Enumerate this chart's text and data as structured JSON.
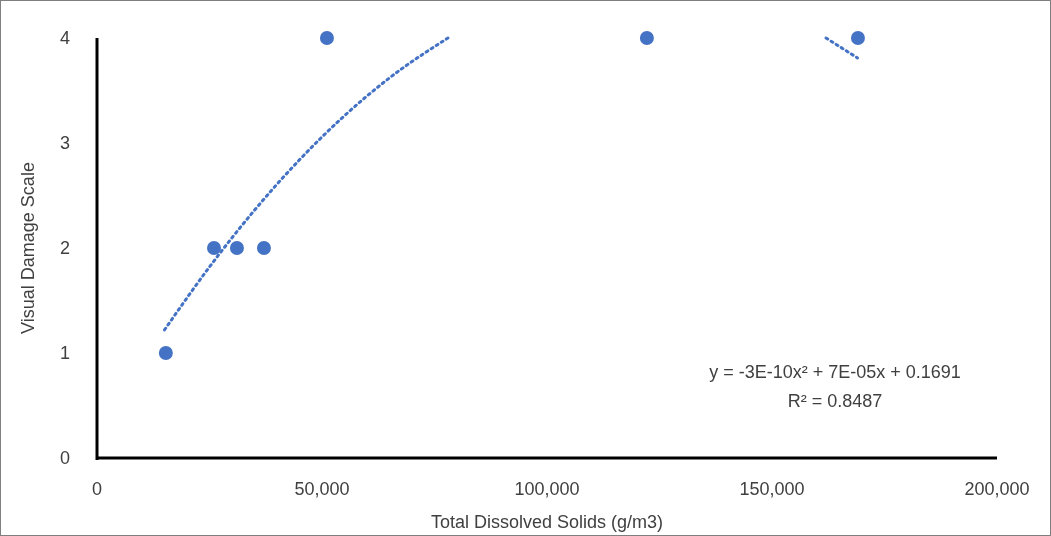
{
  "chart_data": {
    "type": "scatter",
    "xlabel": "Total Dissolved Solids (g/m3)",
    "ylabel": "Visual Damage Scale",
    "xlim": [
      0,
      200000
    ],
    "xticks": [
      0,
      {
        "value": 50000,
        "label": "50,000"
      },
      {
        "value": 100000,
        "label": "100,000"
      },
      {
        "value": 150000,
        "label": "150,000"
      },
      {
        "value": 200000,
        "label": "200,000"
      }
    ],
    "ylim": [
      0,
      4
    ],
    "yticks": [
      0,
      1,
      2,
      3,
      4
    ],
    "grid": false,
    "annotations": [
      "y = -3E-10x² + 7E-05x + 0.1691",
      "R² = 0.8487"
    ],
    "series": [
      {
        "type": "scatter",
        "color": "#4472c4",
        "marker": "circle",
        "x": [
          15300,
          26000,
          31100,
          37100,
          51100,
          122200,
          169100
        ],
        "values": [
          1,
          2,
          2,
          2,
          4,
          4,
          4
        ]
      },
      {
        "type": "line",
        "color": "#4472c4",
        "line_style": "dotted",
        "x": [
          15000,
          25000,
          35000,
          45000,
          55000,
          65000,
          78000,
          120000,
          162000,
          169000
        ],
        "values": [
          1.22,
          1.82,
          2.36,
          2.84,
          3.26,
          3.62,
          4.0,
          null,
          4.0,
          3.81
        ]
      }
    ]
  }
}
